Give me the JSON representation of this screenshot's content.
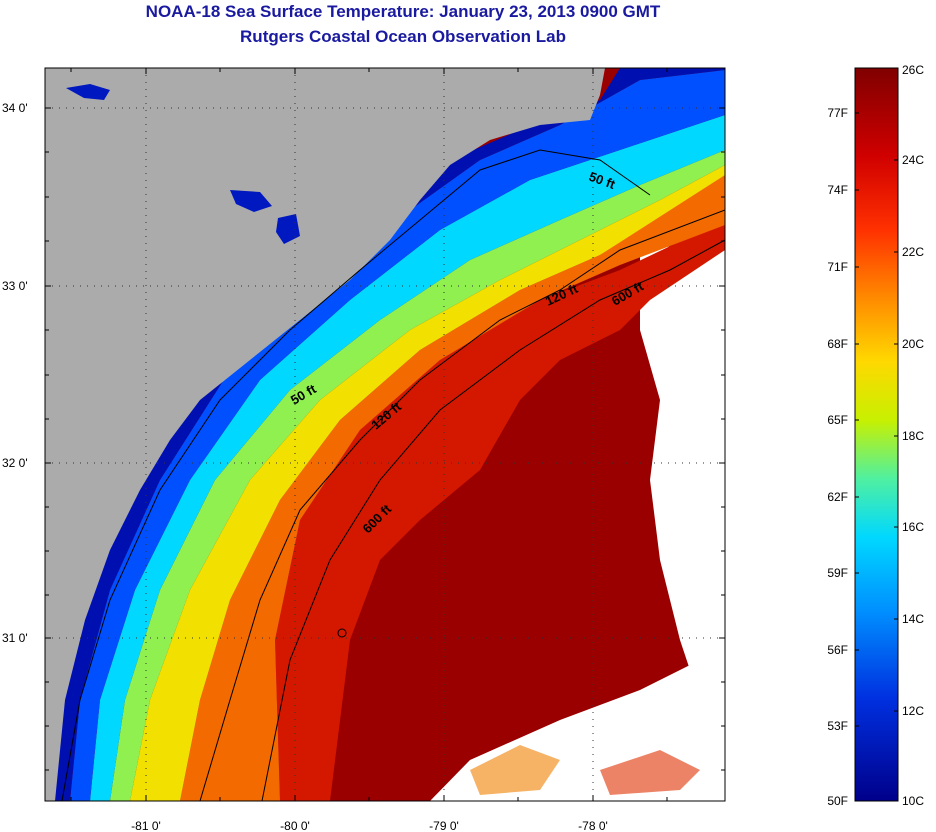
{
  "title": {
    "line1": "NOAA-18 Sea Surface Temperature:  January 23, 2013 0900 GMT",
    "line2": "Rutgers Coastal Ocean Observation Lab"
  },
  "map": {
    "lat_ticks": [
      "34 0'",
      "33 0'",
      "32 0'",
      "31 0'"
    ],
    "lon_ticks": [
      "-81 0'",
      "-80 0'",
      "-79 0'",
      "-78 0'"
    ],
    "contours": {
      "c50_a": "50 ft",
      "c50_b": "50 ft",
      "c120_a": "120 ft",
      "c120_b": "120 ft",
      "c600_a": "600 ft",
      "c600_b": "600 ft"
    }
  },
  "colorbar": {
    "celsius": [
      "26C",
      "24C",
      "22C",
      "20C",
      "18C",
      "16C",
      "14C",
      "12C",
      "10C"
    ],
    "fahrenheit": [
      "77F",
      "74F",
      "71F",
      "68F",
      "65F",
      "62F",
      "59F",
      "56F",
      "53F",
      "50F"
    ]
  },
  "colors": {
    "land": "#ababab",
    "deep_red": "#8b0000",
    "red": "#d21a00",
    "orange": "#f07800",
    "yellow": "#f0e000",
    "cyan": "#00d4ff",
    "blue": "#0040ff",
    "navy": "#00008a"
  }
}
